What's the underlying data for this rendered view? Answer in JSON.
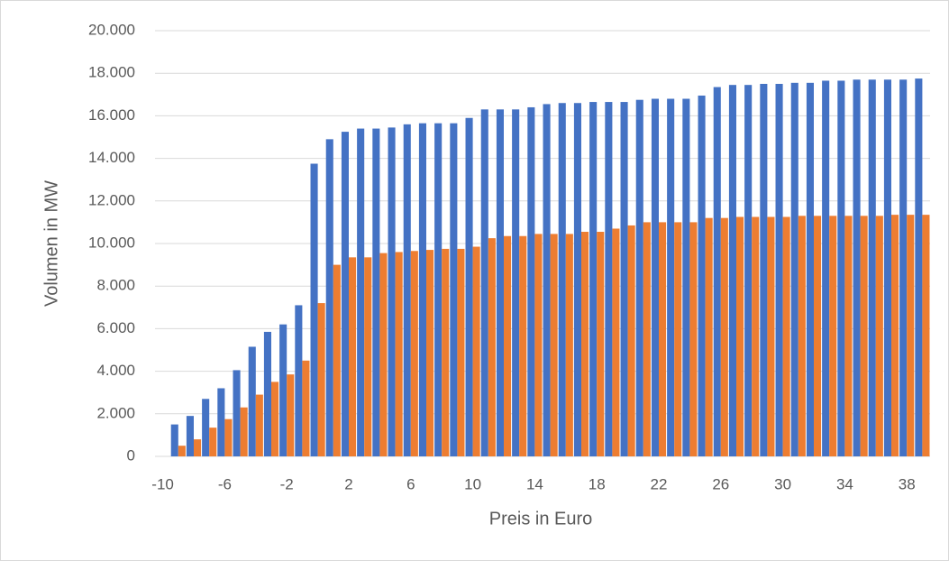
{
  "chart_data": {
    "type": "bar",
    "x_label": "Preis in Euro",
    "y_label": "Volumen in MW",
    "categories": [
      "-10",
      null,
      null,
      null,
      "-6",
      null,
      null,
      null,
      "-2",
      null,
      null,
      null,
      "2",
      null,
      null,
      null,
      "6",
      null,
      null,
      null,
      "10",
      null,
      null,
      null,
      "14",
      null,
      null,
      null,
      "18",
      null,
      null,
      null,
      "22",
      null,
      null,
      null,
      "26",
      null,
      null,
      null,
      "30",
      null,
      null,
      null,
      "34",
      null,
      null,
      null,
      "38",
      null
    ],
    "series": [
      {
        "color": "#4472c4",
        "values": [
          null,
          1500,
          1900,
          2700,
          3200,
          4050,
          5150,
          5850,
          6200,
          7100,
          13750,
          14900,
          15250,
          15400,
          15400,
          15450,
          15600,
          15650,
          15650,
          15650,
          15900,
          16300,
          16300,
          16300,
          16400,
          16550,
          16600,
          16600,
          16650,
          16650,
          16650,
          16750,
          16800,
          16800,
          16800,
          16950,
          17350,
          17450,
          17450,
          17500,
          17500,
          17550,
          17550,
          17650,
          17650,
          17700,
          17700,
          17700,
          17700,
          17750
        ]
      },
      {
        "color": "#ed7d31",
        "values": [
          null,
          500,
          800,
          1350,
          1750,
          2300,
          2900,
          3500,
          3850,
          4500,
          7200,
          9000,
          9350,
          9350,
          9550,
          9600,
          9650,
          9700,
          9750,
          9750,
          9850,
          10250,
          10350,
          10350,
          10450,
          10450,
          10450,
          10550,
          10550,
          10700,
          10850,
          11000,
          11000,
          11000,
          11000,
          11200,
          11200,
          11250,
          11250,
          11250,
          11250,
          11300,
          11300,
          11300,
          11300,
          11300,
          11300,
          11350,
          11350,
          11350
        ]
      }
    ],
    "ylim": [
      0,
      20000
    ],
    "yticks": [
      0,
      {
        "value": 2000,
        "label": "2.000"
      },
      {
        "value": 4000,
        "label": "4.000"
      },
      {
        "value": 6000,
        "label": "6.000"
      },
      {
        "value": 8000,
        "label": "8.000"
      },
      {
        "value": 10000,
        "label": "10.000"
      },
      {
        "value": 12000,
        "label": "12.000"
      },
      {
        "value": 14000,
        "label": "14.000"
      },
      {
        "value": 16000,
        "label": "16.000"
      },
      {
        "value": 18000,
        "label": "18.000"
      },
      {
        "value": 20000,
        "label": "20.000"
      }
    ],
    "grid": true
  }
}
